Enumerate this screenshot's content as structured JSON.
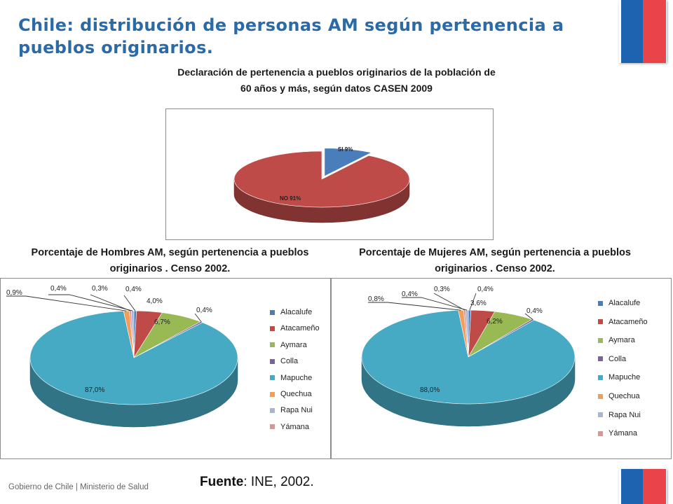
{
  "slide": {
    "title": "Chile: distribución de personas AM según pertenencia a pueblos originarios.",
    "footer": "Gobierno de Chile | Ministerio de Salud",
    "source_label": "Fuente",
    "source_text": ": INE, 2002."
  },
  "colors": {
    "title": "#2a6aa8",
    "flag_blue": "#1e63b0",
    "flag_red": "#e8444a",
    "Alacalufe": "#4a7ebb",
    "Atacameño": "#be4b48",
    "Aymara": "#98b954",
    "Colla": "#7d60a0",
    "Mapuche": "#46aac4",
    "Quechua": "#f59d56",
    "Rapa Nui": "#a5b6d8",
    "Yámana": "#d99694"
  },
  "chart_data": [
    {
      "type": "pie",
      "title": "Declaración de pertenencia a pueblos originarios de la población de 60 años y más, según datos CASEN 2009",
      "categories": [
        "SI",
        "NO"
      ],
      "values": [
        9,
        91
      ],
      "data_labels": [
        "SI 9%",
        "NO 91%"
      ],
      "colors": [
        "#4a7ebb",
        "#be4b48"
      ],
      "style": "3d-exploded"
    },
    {
      "type": "pie",
      "title": "Porcentaje de Hombres AM, según pertenencia a pueblos originarios . Censo 2002.",
      "categories": [
        "Alacalufe",
        "Atacameño",
        "Aymara",
        "Colla",
        "Mapuche",
        "Quechua",
        "Rapa Nui",
        "Yámana"
      ],
      "values": [
        0.4,
        4.0,
        6.7,
        0.4,
        87.0,
        0.9,
        0.4,
        0.3
      ],
      "data_labels": [
        "0,4%",
        "4,0%",
        "6,7%",
        "0,4%",
        "87,0%",
        "0,9%",
        "0,4%",
        "0,3%"
      ],
      "legend_position": "right"
    },
    {
      "type": "pie",
      "title": "Porcentaje de Mujeres AM, según pertenencia a pueblos originarios . Censo 2002.",
      "categories": [
        "Alacalufe",
        "Atacameño",
        "Aymara",
        "Colla",
        "Mapuche",
        "Quechua",
        "Rapa Nui",
        "Yámana"
      ],
      "values": [
        0.4,
        3.6,
        6.2,
        0.4,
        88.0,
        0.8,
        0.4,
        0.3
      ],
      "data_labels": [
        "0,4%",
        "3,6%",
        "6,2%",
        "0,4%",
        "88,0%",
        "0,8%",
        "0,4%",
        "0,3%"
      ],
      "legend_position": "right"
    }
  ]
}
